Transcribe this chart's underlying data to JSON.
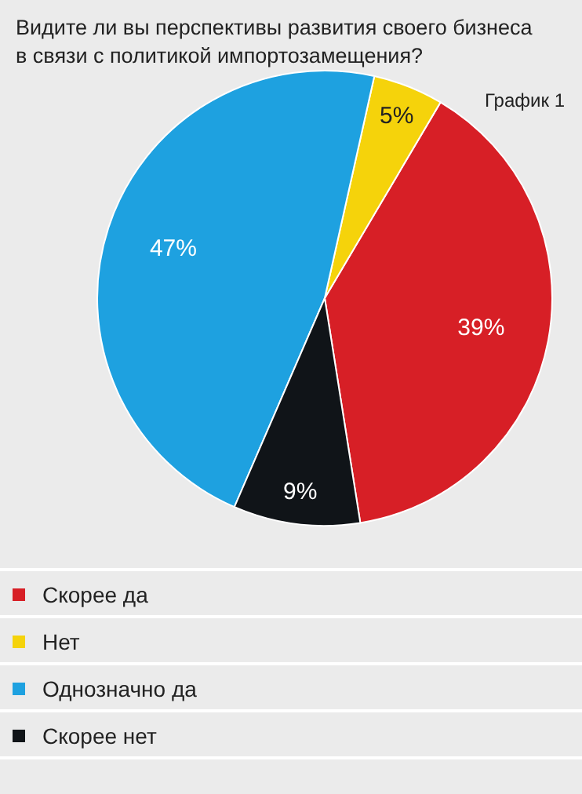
{
  "chart_data": {
    "type": "pie",
    "title": "Видите ли вы перспективы развития своего бизнеса\nв связи с политикой импортозамещения?",
    "subtitle": "График 1",
    "categories": [
      "Скорее да",
      "Нет",
      "Однозначно да",
      "Скорее нет"
    ],
    "values": [
      39,
      5,
      47,
      9
    ],
    "colors": [
      "#d71f26",
      "#f5d30b",
      "#1ea1e0",
      "#101418"
    ],
    "value_labels": [
      "39%",
      "5%",
      "47%",
      "9%"
    ],
    "legend": "bottom"
  }
}
